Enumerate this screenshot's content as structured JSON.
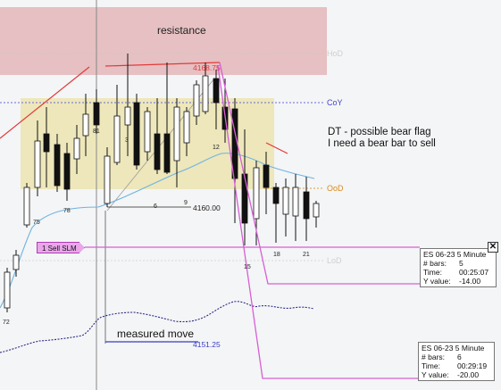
{
  "colors": {
    "resistance_zone": "#e3b6b9",
    "range_zone": "#ece6b5",
    "trend_line": "#e23a3a",
    "moving_average": "#6fb3e0",
    "measured_move_line": "#3b3bc6",
    "order_line": "#d65fd6",
    "candle_outline": "#111111",
    "dotted_indicator": "#2b2b8a"
  },
  "annotations": {
    "resistance": "resistance",
    "comment_line1": "DT - possible bear flag",
    "comment_line2": "I need a bear bar to sell",
    "measured_move": "measured move"
  },
  "level_labels": {
    "hod": "HoD",
    "coy": "CoY",
    "ood": "OoD",
    "lod": "LoD"
  },
  "price_labels": {
    "resistance_price": "4168.75",
    "flag_low_price": "4160.00",
    "measured_move_price": "4151.25"
  },
  "bar_numbers": [
    "75",
    "78",
    "81",
    "3",
    "6",
    "9",
    "12",
    "15",
    "18",
    "21",
    "72"
  ],
  "order": {
    "label": "1 Sell SLM"
  },
  "info_boxes": [
    {
      "title": "ES 06-23 5 Minute",
      "bars_label": "# bars:",
      "bars": "5",
      "time_label": "Time:",
      "time": "00:25:07",
      "yvalue_label": "Y value:",
      "yvalue": "-14.00"
    },
    {
      "title": "ES 06-23 5 Minute",
      "bars_label": "# bars:",
      "bars": "6",
      "time_label": "Time:",
      "time": "00:29:19",
      "yvalue_label": "Y value:",
      "yvalue": "-20.00"
    }
  ],
  "close_button": "✕"
}
